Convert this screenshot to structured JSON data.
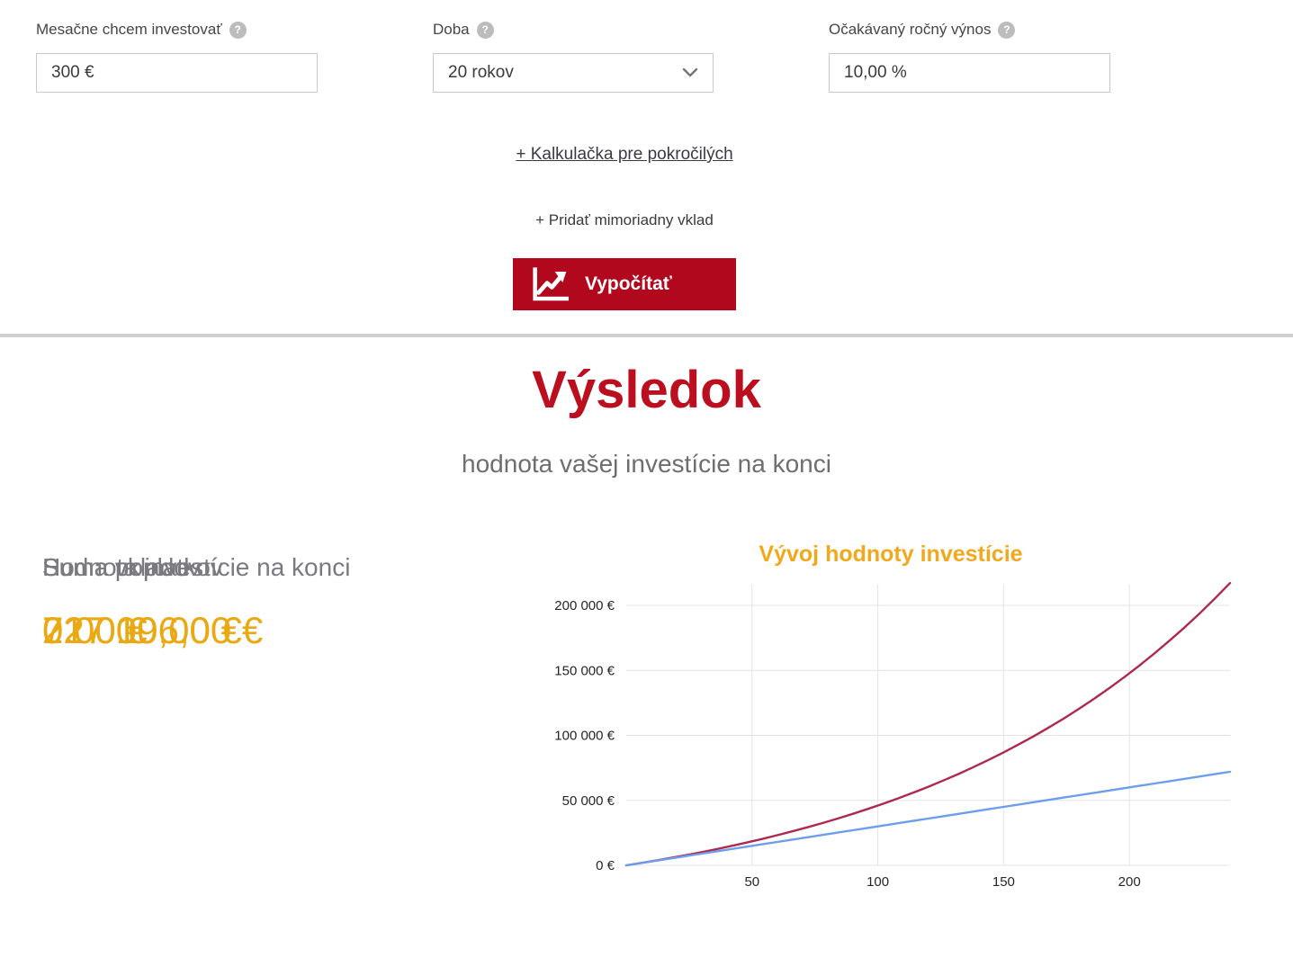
{
  "form": {
    "fields": [
      {
        "label": "Mesačne chcem investovať",
        "value": "300 €"
      },
      {
        "label": "Doba",
        "value": "20 rokov"
      },
      {
        "label": "Očakávaný ročný výnos",
        "value": "10,00 %"
      }
    ],
    "help_icon": "?",
    "advanced_link": "+ Kalkulačka pre pokročilých",
    "extra_deposit_link": "+ Pridať mimoriadny vklad",
    "calculate_button": "Vypočítať"
  },
  "result": {
    "title": "Výsledok",
    "subtitle": "hodnota vašej investície na konci",
    "items": [
      {
        "label": "Suma vkladov",
        "value": "72 000,00 €"
      },
      {
        "label": "Suma poplatkov",
        "value": "0.00 €"
      },
      {
        "label": "Hodnota investície na konci",
        "value": "217 196,00 €"
      }
    ]
  },
  "colors": {
    "button_red": "#b2081d",
    "heading_red": "#bb0e1e",
    "value_orange": "#eaa813",
    "chart_title_orange": "#f1a81b",
    "curve_red": "#ad2a4e",
    "curve_blue": "#6d9eeb",
    "gridline": "#e4e4e4",
    "separator": "#d0d0d0"
  },
  "chart_data": {
    "type": "line",
    "title": "Vývoj hodnoty investície",
    "xlabel": "",
    "ylabel": "",
    "xlim": [
      0,
      240
    ],
    "ylim": [
      0,
      217196
    ],
    "grid": true,
    "legend": "none",
    "x_ticks": [
      50,
      100,
      150,
      200
    ],
    "y_ticks": [
      {
        "value": 0,
        "label": "0 €"
      },
      {
        "value": 50000,
        "label": "50 000 €"
      },
      {
        "value": 100000,
        "label": "100 000 €"
      },
      {
        "value": 150000,
        "label": "150 000 €"
      },
      {
        "value": 200000,
        "label": "200 000 €"
      }
    ],
    "x": [
      0,
      6,
      12,
      18,
      24,
      30,
      36,
      42,
      48,
      54,
      60,
      66,
      72,
      78,
      84,
      90,
      96,
      102,
      108,
      114,
      120,
      126,
      132,
      138,
      144,
      150,
      156,
      162,
      168,
      174,
      180,
      186,
      192,
      198,
      204,
      210,
      216,
      222,
      228,
      234,
      240
    ],
    "series": [
      {
        "name": "Hodnota investície",
        "color": "#ad2a4e",
        "values": [
          0,
          1851,
          3792,
          5828,
          7964,
          10202,
          12552,
          15015,
          17599,
          20309,
          23152,
          26132,
          29259,
          32537,
          35977,
          39582,
          43367,
          47332,
          51495,
          55858,
          60437,
          65235,
          70272,
          75550,
          81091,
          86897,
          92992,
          99379,
          106083,
          113110,
          120484,
          128213,
          136325,
          144826,
          153749,
          163100,
          172915,
          183202,
          193997,
          205314,
          217196
        ]
      },
      {
        "name": "Suma vkladov",
        "color": "#6d9eeb",
        "values": [
          0,
          1800,
          3600,
          5400,
          7200,
          9000,
          10800,
          12600,
          14400,
          16200,
          18000,
          19800,
          21600,
          23400,
          25200,
          27000,
          28800,
          30600,
          32400,
          34200,
          36000,
          37800,
          39600,
          41400,
          43200,
          45000,
          46800,
          48600,
          50400,
          52200,
          54000,
          55800,
          57600,
          59400,
          61200,
          63000,
          64800,
          66600,
          68400,
          70200,
          72000
        ]
      }
    ]
  }
}
